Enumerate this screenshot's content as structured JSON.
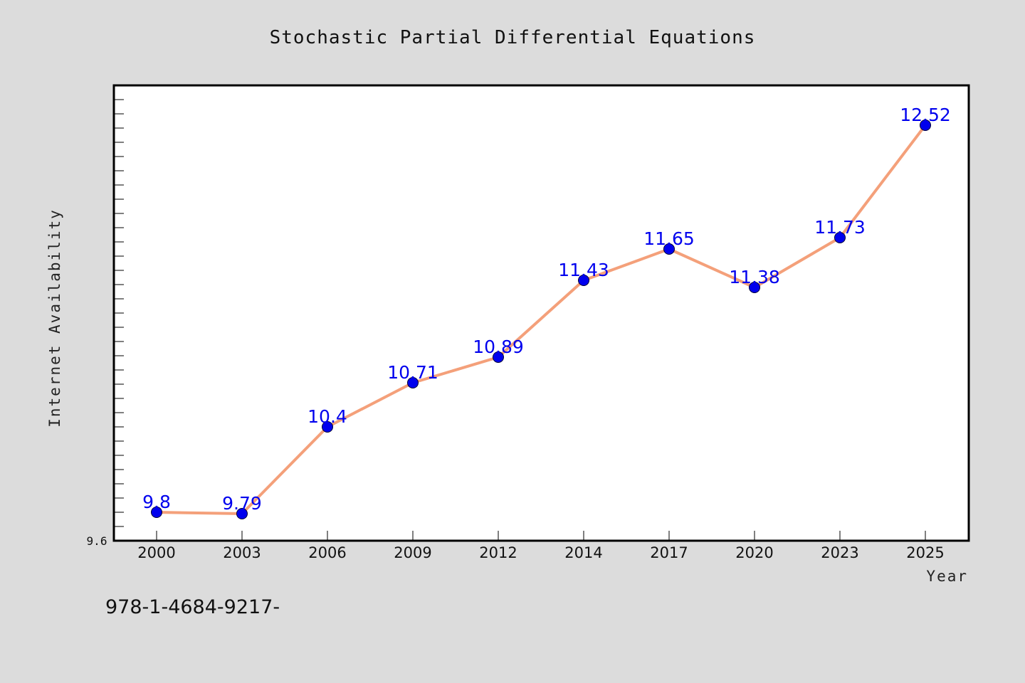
{
  "chart_data": {
    "type": "line",
    "title": "Stochastic Partial Differential Equations",
    "xlabel": "Year",
    "ylabel": "Internet Availability",
    "categories": [
      "2000",
      "2003",
      "2006",
      "2009",
      "2012",
      "2014",
      "2017",
      "2020",
      "2023",
      "2025"
    ],
    "series": [
      {
        "values": [
          9.8,
          9.79,
          10.4,
          10.71,
          10.89,
          11.43,
          11.65,
          11.38,
          11.73,
          12.52
        ]
      }
    ],
    "data_labels": [
      "9.8",
      "9.79",
      "10.4",
      "10.71",
      "10.89",
      "11.43",
      "11.65",
      "11.38",
      "11.73",
      "12.52"
    ],
    "ylim": [
      9.6,
      12.8
    ],
    "y_tick_label": "9.6",
    "grid": false,
    "legend": "none",
    "colors": {
      "line": "#f4a07a",
      "marker": "#0000ee",
      "data_label": "#0000ee",
      "plot_background": "#ffffff",
      "figure_background": "#dcdcdc"
    }
  },
  "footer": {
    "text": "978-1-4684-9217-"
  }
}
